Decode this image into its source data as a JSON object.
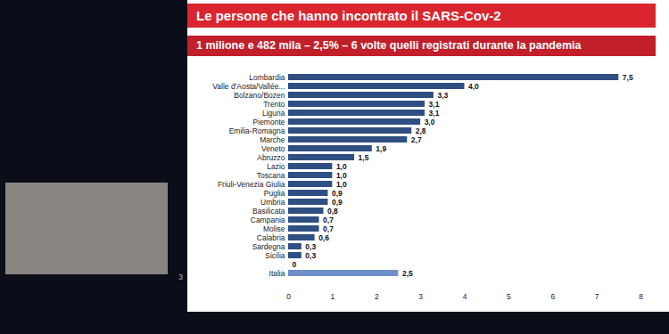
{
  "chart_data": {
    "type": "bar",
    "orientation": "horizontal",
    "title": "Le persone che hanno incontrato il SARS-Cov-2",
    "subtitle": "1 milione e 482 mila – 2,5% – 6 volte quelli registrati durante la pandemia",
    "page_number": "3",
    "categories": [
      "Lombardia",
      "Valle d'Aosta/Vallée...",
      "Bolzano/Bozen",
      "Trento",
      "Liguria",
      "Piemonte",
      "Emilia-Romagna",
      "Marche",
      "Veneto",
      "Abruzzo",
      "Lazio",
      "Toscana",
      "Friuli-Venezia Giulia",
      "Puglia",
      "Umbria",
      "Basilicata",
      "Campania",
      "Molise",
      "Calabria",
      "Sardegna",
      "Sicilia",
      null,
      "Italia"
    ],
    "values": [
      7.5,
      4.0,
      3.3,
      3.1,
      3.1,
      3.0,
      2.8,
      2.7,
      1.9,
      1.5,
      1.0,
      1.0,
      1.0,
      0.9,
      0.9,
      0.8,
      0.7,
      0.7,
      0.6,
      0.3,
      0.3,
      0,
      2.5
    ],
    "value_labels": [
      "7,5",
      "4,0",
      "3,3",
      "3,1",
      "3,1",
      "3,0",
      "2,8",
      "2,7",
      "1,9",
      "1,5",
      "1,0",
      "1,0",
      "1,0",
      "0,9",
      "0,9",
      "0,8",
      "0,7",
      "0,7",
      "0,6",
      "0,3",
      "0,3",
      "0",
      "2,5"
    ],
    "colors": [
      "#2f4f82",
      "#2f4f82",
      "#2f4f82",
      "#2f4f82",
      "#2f4f82",
      "#2f4f82",
      "#2f4f82",
      "#2f4f82",
      "#2f4f82",
      "#2f4f82",
      "#2f4f82",
      "#2f4f82",
      "#2f4f82",
      "#2f4f82",
      "#2f4f82",
      "#2f4f82",
      "#2f4f82",
      "#2f4f82",
      "#2f4f82",
      "#2f4f82",
      "#2f4f82",
      "#2f4f82",
      "#6f8fc8"
    ],
    "xlim": [
      0,
      8
    ],
    "xticks": [
      0,
      1,
      2,
      3,
      4,
      5,
      6,
      7,
      8
    ],
    "data_labels": true,
    "grid": false
  }
}
